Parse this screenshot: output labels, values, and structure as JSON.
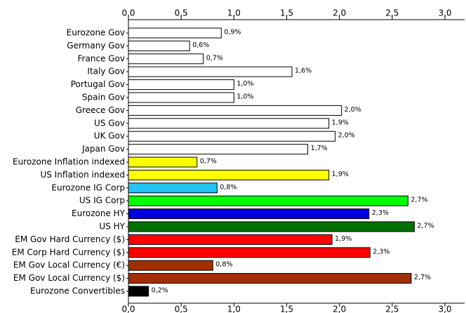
{
  "chart_data": {
    "type": "barh",
    "categories": [
      "Eurozone Gov",
      "Germany Gov",
      "France Gov",
      "Italy Gov",
      "Portugal Gov",
      "Spain Gov",
      "Greece Gov",
      "US Gov",
      "UK Gov",
      "Japan Gov",
      "Eurozone Inflation indexed",
      "US Inflation indexed",
      "Eurozone IG Corp",
      "US IG Corp",
      "Eurozone HY",
      "US HY",
      "EM Gov Hard Currency ($)",
      "EM Corp Hard Currency ($)",
      "EM Gov Local Currency (€)",
      "EM Gov Local Currency ($)",
      "Eurozone Convertibles"
    ],
    "values": [
      0.88,
      0.58,
      0.71,
      1.55,
      1.0,
      1.0,
      2.02,
      1.9,
      1.96,
      1.7,
      0.65,
      1.9,
      0.84,
      2.65,
      2.28,
      2.71,
      1.93,
      2.29,
      0.8,
      2.68,
      0.19
    ],
    "value_labels": [
      "0,9%",
      "0,6%",
      "0,7%",
      "1,6%",
      "1,0%",
      "1,0%",
      "2,0%",
      "1,9%",
      "2,0%",
      "1,7%",
      "0,7%",
      "1,9%",
      "0,8%",
      "2,7%",
      "2,3%",
      "2,7%",
      "1,9%",
      "2,3%",
      "0,8%",
      "2,7%",
      "0,2%"
    ],
    "colors": [
      "#ffffff",
      "#ffffff",
      "#ffffff",
      "#ffffff",
      "#ffffff",
      "#ffffff",
      "#ffffff",
      "#ffffff",
      "#ffffff",
      "#ffffff",
      "#ffff00",
      "#ffff00",
      "#22c4f4",
      "#00ff00",
      "#0000dd",
      "#007000",
      "#ff0000",
      "#ff0000",
      "#a03000",
      "#a03000",
      "#000000"
    ],
    "xlim": [
      0,
      3
    ],
    "xticks": [
      {
        "value": 0,
        "label": "0,0"
      },
      {
        "value": 0.5,
        "label": "0,5"
      },
      {
        "value": 1,
        "label": "1,0"
      },
      {
        "value": 1.5,
        "label": "1,5"
      },
      {
        "value": 2,
        "label": "2,0"
      },
      {
        "value": 2.5,
        "label": "2,5"
      },
      {
        "value": 3,
        "label": "3,0"
      }
    ]
  }
}
